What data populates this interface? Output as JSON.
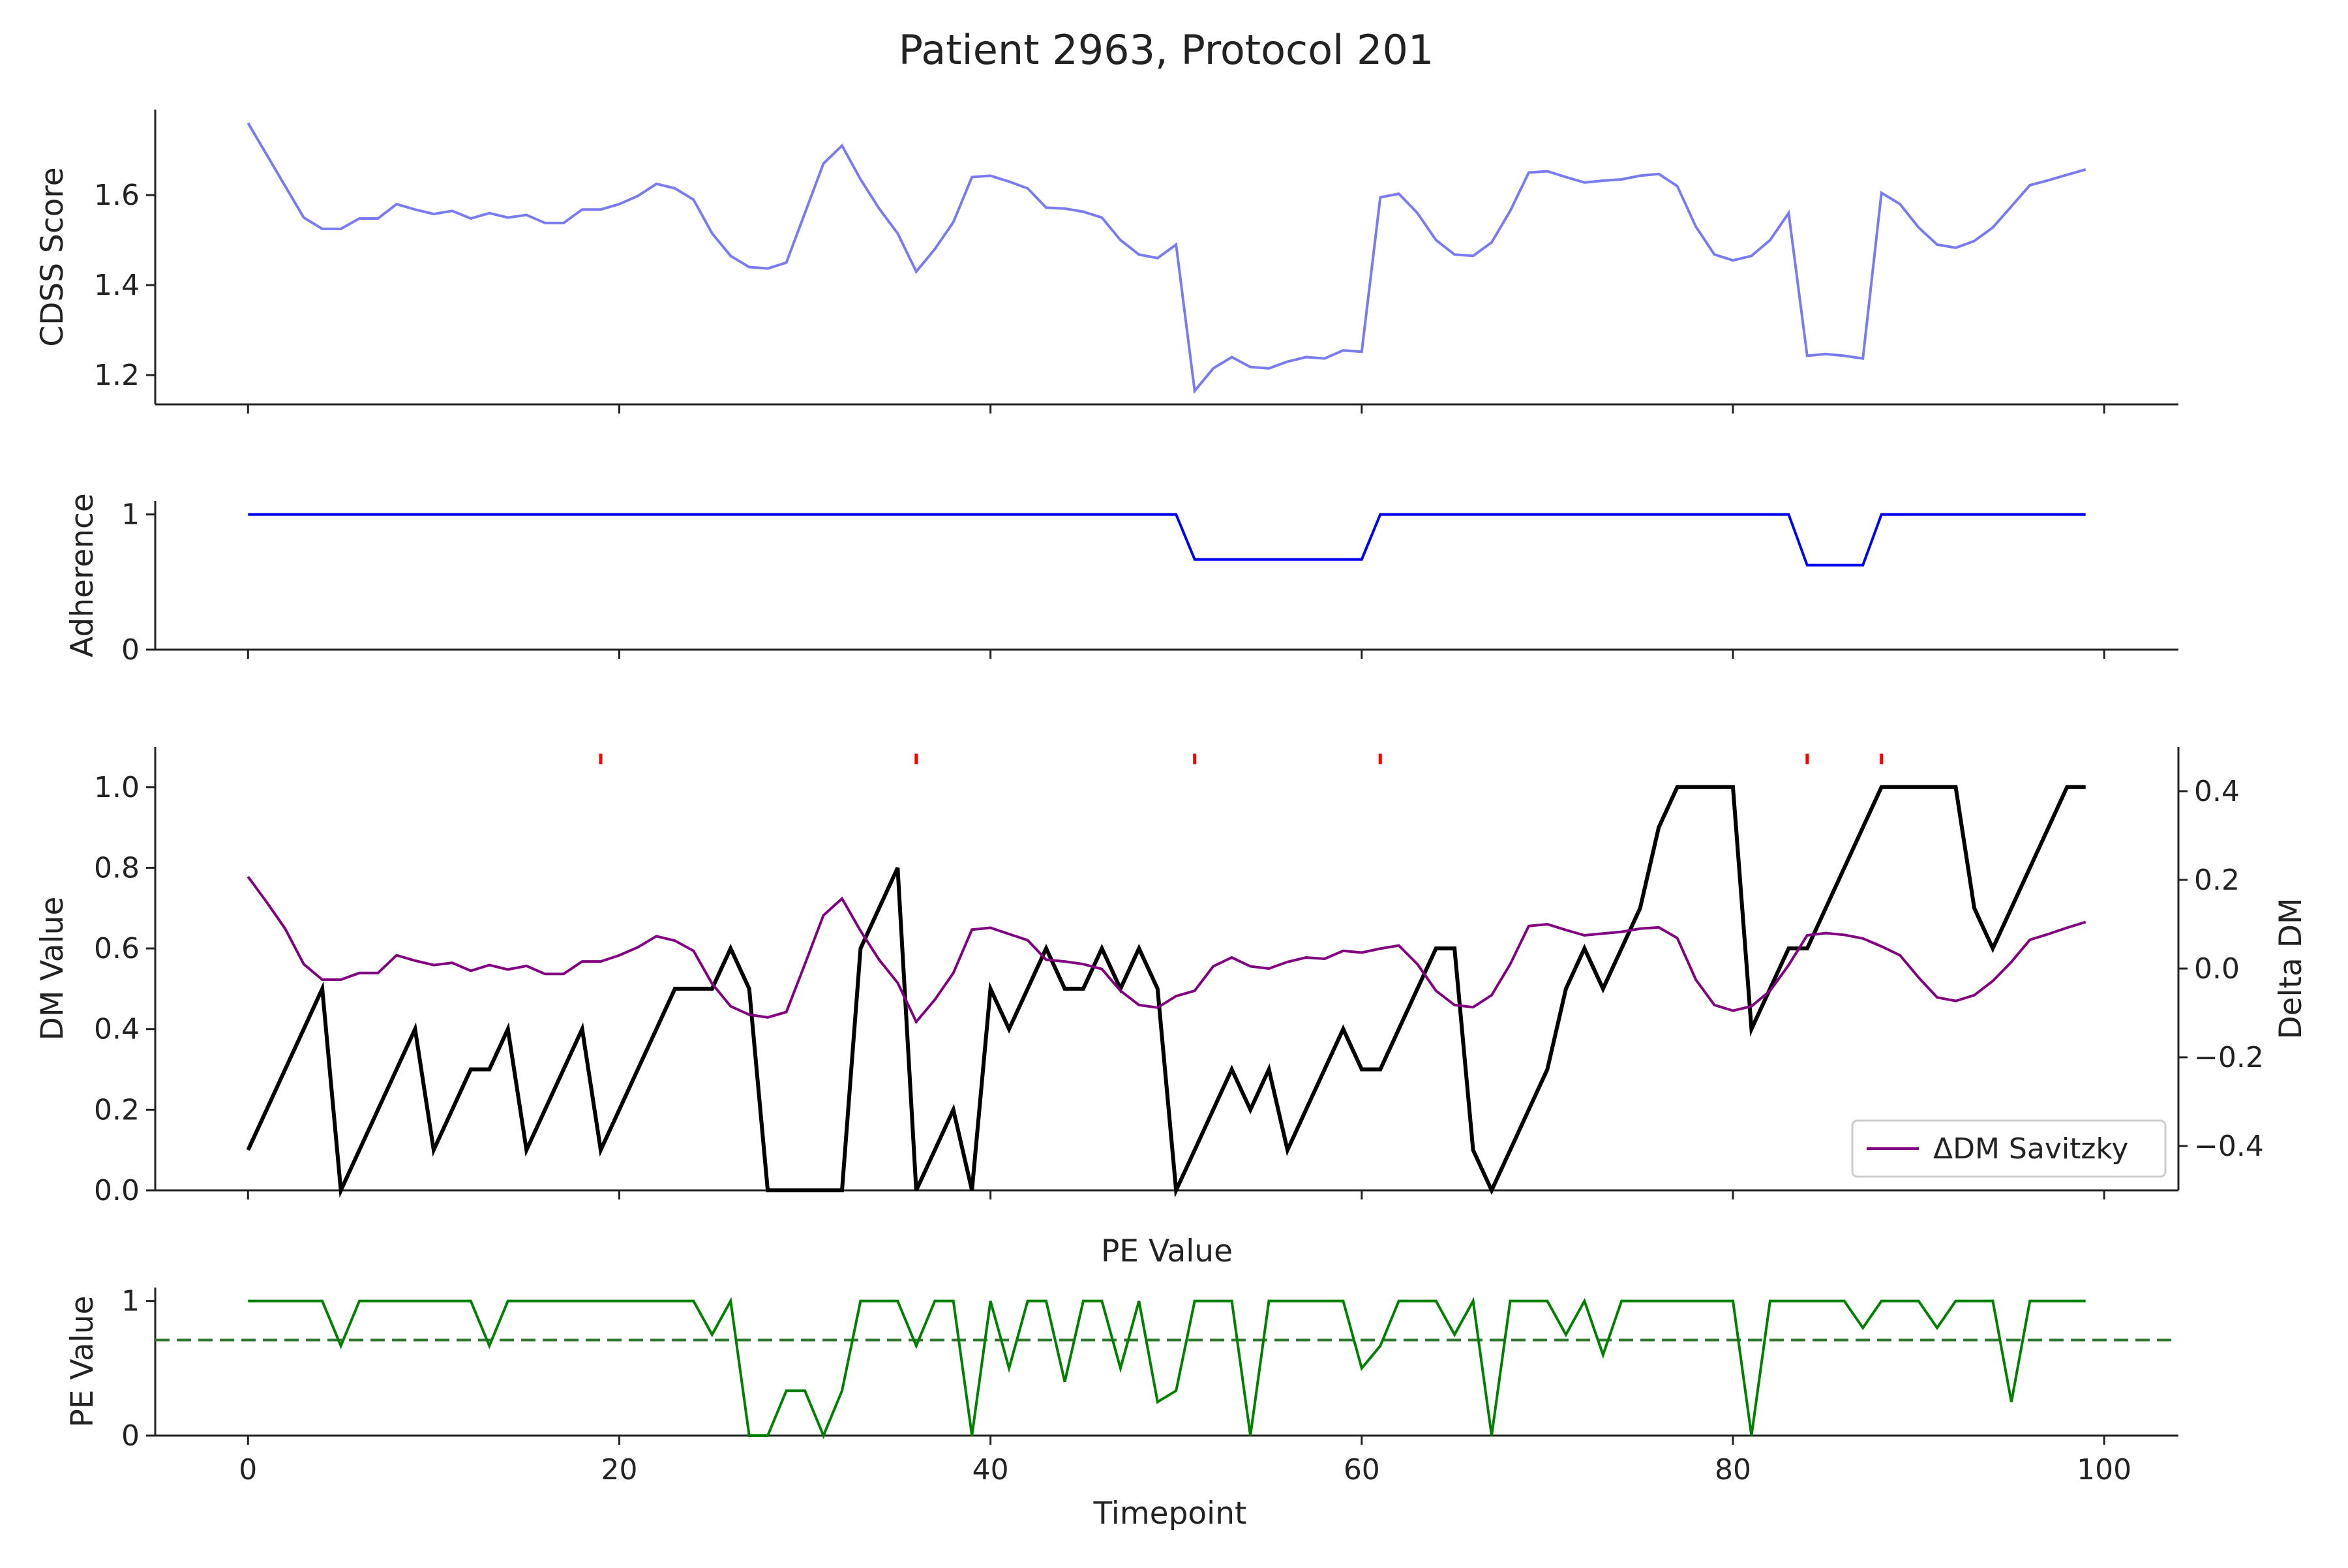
{
  "figure": {
    "title": "Patient 2963, Protocol 201"
  },
  "colors": {
    "cdss": "#7b7bf0",
    "adherence": "#0000ee",
    "dm": "#000000",
    "delta_dm": "#800080",
    "marker": "#ff0000",
    "pe": "#008000",
    "pe_threshold": "#2f7a2f",
    "axis": "#222222"
  },
  "chart_data": [
    {
      "id": "cdss",
      "type": "line",
      "ylabel": "CDSS Score",
      "ylim": [
        1.135,
        1.79
      ],
      "yticks": [
        1.2,
        1.4,
        1.6
      ],
      "ytick_labels": [
        "1.2",
        "1.4",
        "1.6"
      ],
      "xlim": [
        -5,
        104
      ],
      "series": [
        {
          "values": [
            1.76,
            1.69,
            1.62,
            1.55,
            1.525,
            1.525,
            1.548,
            1.548,
            1.58,
            1.568,
            1.558,
            1.565,
            1.548,
            1.56,
            1.55,
            1.556,
            1.538,
            1.538,
            1.568,
            1.568,
            1.58,
            1.598,
            1.625,
            1.615,
            1.59,
            1.515,
            1.465,
            1.44,
            1.437,
            1.45,
            1.56,
            1.67,
            1.71,
            1.635,
            1.57,
            1.515,
            1.43,
            1.48,
            1.54,
            1.64,
            1.643,
            1.63,
            1.615,
            1.572,
            1.57,
            1.563,
            1.55,
            1.5,
            1.468,
            1.46,
            1.49,
            1.165,
            1.215,
            1.24,
            1.218,
            1.215,
            1.23,
            1.24,
            1.237,
            1.255,
            1.252,
            1.595,
            1.603,
            1.56,
            1.5,
            1.468,
            1.465,
            1.495,
            1.565,
            1.65,
            1.653,
            1.64,
            1.628,
            1.632,
            1.635,
            1.643,
            1.647,
            1.62,
            1.53,
            1.468,
            1.455,
            1.465,
            1.5,
            1.56,
            1.243,
            1.247,
            1.243,
            1.237,
            1.605,
            1.58,
            1.528,
            1.49,
            1.483,
            1.498,
            1.528,
            1.575,
            1.622,
            1.633,
            1.645,
            1.657
          ]
        }
      ]
    },
    {
      "id": "adherence",
      "type": "line",
      "ylabel": "Adherence",
      "ylim": [
        0,
        1.1
      ],
      "yticks": [
        0,
        1
      ],
      "ytick_labels": [
        "0",
        "1"
      ],
      "xlim": [
        -5,
        104
      ],
      "series": [
        {
          "values": [
            1,
            1,
            1,
            1,
            1,
            1,
            1,
            1,
            1,
            1,
            1,
            1,
            1,
            1,
            1,
            1,
            1,
            1,
            1,
            1,
            1,
            1,
            1,
            1,
            1,
            1,
            1,
            1,
            1,
            1,
            1,
            1,
            1,
            1,
            1,
            1,
            1,
            1,
            1,
            1,
            1,
            1,
            1,
            1,
            1,
            1,
            1,
            1,
            1,
            1,
            1,
            0.667,
            0.667,
            0.667,
            0.667,
            0.667,
            0.667,
            0.667,
            0.667,
            0.667,
            0.667,
            1,
            1,
            1,
            1,
            1,
            1,
            1,
            1,
            1,
            1,
            1,
            1,
            1,
            1,
            1,
            1,
            1,
            1,
            1,
            1,
            1,
            1,
            1,
            0.625,
            0.625,
            0.625,
            0.625,
            1,
            1,
            1,
            1,
            1,
            1,
            1,
            1,
            1,
            1,
            1,
            1
          ]
        }
      ]
    },
    {
      "id": "dm",
      "type": "line",
      "ylabel": "DM Value",
      "y2label": "Delta DM",
      "ylim": [
        0,
        1.1
      ],
      "yticks": [
        0,
        0.2,
        0.4,
        0.6,
        0.8,
        1.0
      ],
      "ytick_labels": [
        "0.0",
        "0.2",
        "0.4",
        "0.6",
        "0.8",
        "1.0"
      ],
      "y2lim": [
        -0.5,
        0.5
      ],
      "y2ticks": [
        -0.4,
        -0.2,
        0,
        0.2,
        0.4
      ],
      "y2tick_labels": [
        "−0.4",
        "−0.2",
        "0.0",
        "0.2",
        "0.4"
      ],
      "xlim": [
        -5,
        104
      ],
      "series": [
        {
          "name": "",
          "axis": "left",
          "values": [
            0.1,
            0.2,
            0.3,
            0.4,
            0.5,
            0,
            0.1,
            0.2,
            0.3,
            0.4,
            0.1,
            0.2,
            0.3,
            0.3,
            0.4,
            0.1,
            0.2,
            0.3,
            0.4,
            0.1,
            0.2,
            0.3,
            0.4,
            0.5,
            0.5,
            0.5,
            0.6,
            0.5,
            0,
            0,
            0,
            0,
            0,
            0.6,
            0.7,
            0.8,
            0,
            0.1,
            0.2,
            0,
            0.5,
            0.4,
            0.5,
            0.6,
            0.5,
            0.5,
            0.6,
            0.5,
            0.6,
            0.5,
            0,
            0.1,
            0.2,
            0.3,
            0.2,
            0.3,
            0.1,
            0.2,
            0.3,
            0.4,
            0.3,
            0.3,
            0.4,
            0.5,
            0.6,
            0.6,
            0.1,
            0,
            0.1,
            0.2,
            0.3,
            0.5,
            0.6,
            0.5,
            0.6,
            0.7,
            0.9,
            1,
            1,
            1,
            1,
            0.4,
            0.5,
            0.6,
            0.6,
            0.7,
            0.8,
            0.9,
            1,
            1,
            1,
            1,
            1,
            0.7,
            0.6,
            0.7,
            0.8,
            0.9,
            1,
            1
          ]
        },
        {
          "name": "ΔDM Savitzky",
          "axis": "right",
          "values": [
            0.207,
            0.15,
            0.09,
            0.01,
            -0.025,
            -0.025,
            -0.01,
            -0.01,
            0.03,
            0.018,
            0.008,
            0.013,
            -0.005,
            0.008,
            -0.002,
            0.006,
            -0.012,
            -0.012,
            0.016,
            0.016,
            0.03,
            0.048,
            0.073,
            0.063,
            0.04,
            -0.034,
            -0.085,
            -0.104,
            -0.11,
            -0.098,
            0.01,
            0.12,
            0.158,
            0.085,
            0.02,
            -0.032,
            -0.12,
            -0.07,
            -0.01,
            0.088,
            0.092,
            0.078,
            0.064,
            0.02,
            0.016,
            0.01,
            -0.001,
            -0.05,
            -0.082,
            -0.088,
            -0.062,
            -0.05,
            0.005,
            0.025,
            0.005,
            0,
            0.015,
            0.025,
            0.022,
            0.04,
            0.036,
            0.045,
            0.052,
            0.01,
            -0.05,
            -0.082,
            -0.087,
            -0.06,
            0.01,
            0.096,
            0.1,
            0.087,
            0.075,
            0.079,
            0.083,
            0.09,
            0.093,
            0.069,
            -0.025,
            -0.082,
            -0.095,
            -0.085,
            -0.05,
            0.008,
            0.075,
            0.08,
            0.076,
            0.068,
            0.05,
            0.03,
            -0.02,
            -0.065,
            -0.073,
            -0.06,
            -0.028,
            0.015,
            0.065,
            0.078,
            0.092,
            0.105
          ]
        }
      ],
      "markers": {
        "x": [
          19,
          36,
          51,
          61,
          84,
          88
        ],
        "y": 1.07,
        "label": "|"
      },
      "legend": {
        "location": "lower-right",
        "entries": [
          "ΔDM Savitzky"
        ]
      }
    },
    {
      "id": "pe",
      "type": "line",
      "title": "PE Value",
      "ylabel": "PE Value",
      "xlabel": "Timepoint",
      "ylim": [
        0,
        1.1
      ],
      "yticks": [
        0,
        1
      ],
      "ytick_labels": [
        "0",
        "1"
      ],
      "xlim": [
        -5,
        104
      ],
      "xticks": [
        0,
        20,
        40,
        60,
        80,
        100
      ],
      "xtick_labels": [
        "0",
        "20",
        "40",
        "60",
        "80",
        "100"
      ],
      "threshold": 0.71,
      "series": [
        {
          "values": [
            1,
            1,
            1,
            1,
            1,
            0.667,
            1,
            1,
            1,
            1,
            1,
            1,
            1,
            0.667,
            1,
            1,
            1,
            1,
            1,
            1,
            1,
            1,
            1,
            1,
            1,
            0.75,
            1,
            0,
            0,
            0.333,
            0.333,
            0,
            0.333,
            1,
            1,
            1,
            0.667,
            1,
            1,
            0,
            1,
            0.5,
            1,
            1,
            0.4,
            1,
            1,
            0.5,
            1,
            0.25,
            0.333,
            1,
            1,
            1,
            0,
            1,
            1,
            1,
            1,
            1,
            0.5,
            0.667,
            1,
            1,
            1,
            0.75,
            1,
            0,
            1,
            1,
            1,
            0.75,
            1,
            0.6,
            1,
            1,
            1,
            1,
            1,
            1,
            1,
            0,
            1,
            1,
            1,
            1,
            1,
            0.8,
            1,
            1,
            1,
            0.8,
            1,
            1,
            1,
            0.25,
            1,
            1,
            1,
            1
          ]
        }
      ]
    }
  ]
}
